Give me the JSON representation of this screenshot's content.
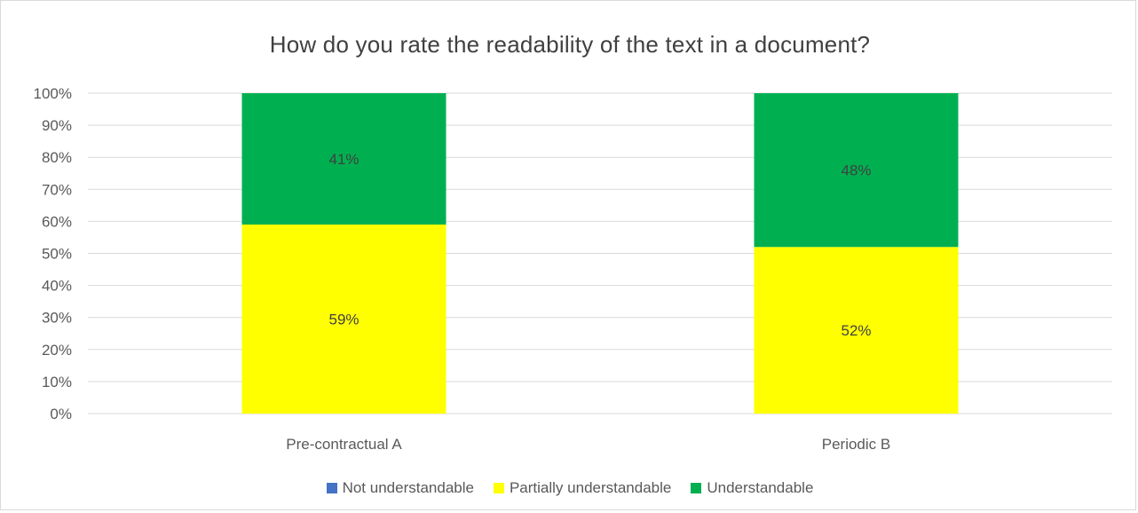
{
  "chart_data": {
    "type": "bar",
    "stacked": true,
    "title": "How do you rate the readability of the text in a document?",
    "categories": [
      "Pre-contractual A",
      "Periodic B"
    ],
    "series": [
      {
        "name": "Not understandable",
        "values": [
          0,
          0
        ],
        "color": "#4472c4"
      },
      {
        "name": "Partially understandable",
        "values": [
          59,
          52
        ],
        "color": "#ffff00"
      },
      {
        "name": "Understandable",
        "values": [
          41,
          48
        ],
        "color": "#00b050"
      }
    ],
    "data_labels": [
      {
        "category": "Pre-contractual A",
        "series": "Partially understandable",
        "text": "59%"
      },
      {
        "category": "Pre-contractual A",
        "series": "Understandable",
        "text": "41%"
      },
      {
        "category": "Periodic B",
        "series": "Partially understandable",
        "text": "52%"
      },
      {
        "category": "Periodic B",
        "series": "Understandable",
        "text": "48%"
      }
    ],
    "y_ticks": [
      "0%",
      "10%",
      "20%",
      "30%",
      "40%",
      "50%",
      "60%",
      "70%",
      "80%",
      "90%",
      "100%"
    ],
    "ylim": [
      0,
      100
    ],
    "grid": true,
    "legend_position": "bottom",
    "xlabel": "",
    "ylabel": ""
  }
}
